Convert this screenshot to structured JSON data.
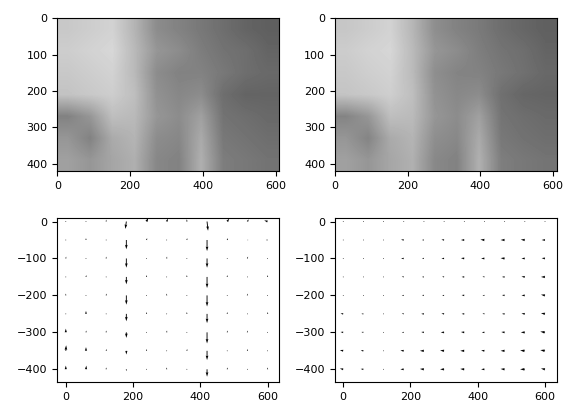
{
  "chart_data": [
    {
      "type": "image",
      "cells": [
        [
          200,
          205,
          210,
          180,
          140,
          130,
          120,
          110,
          100,
          95
        ],
        [
          205,
          210,
          215,
          185,
          150,
          140,
          125,
          115,
          110,
          100
        ],
        [
          200,
          205,
          210,
          185,
          140,
          130,
          130,
          120,
          110,
          105
        ],
        [
          195,
          200,
          205,
          190,
          145,
          135,
          140,
          110,
          100,
          100
        ],
        [
          130,
          150,
          190,
          185,
          150,
          140,
          160,
          115,
          110,
          105
        ],
        [
          150,
          130,
          170,
          180,
          140,
          135,
          170,
          120,
          115,
          110
        ],
        [
          160,
          150,
          165,
          175,
          135,
          130,
          175,
          125,
          120,
          115
        ]
      ],
      "color_range": [
        0,
        255
      ],
      "extent": [
        0,
        610,
        420,
        0
      ],
      "xlim": [
        0,
        610
      ],
      "ylim": [
        420,
        0
      ],
      "xticks": [
        0,
        200,
        400,
        600
      ],
      "yticks": [
        0,
        100,
        200,
        300,
        400
      ]
    },
    {
      "type": "image",
      "cells": [
        [
          198,
          204,
          210,
          182,
          142,
          130,
          122,
          110,
          102,
          96
        ],
        [
          204,
          210,
          214,
          186,
          150,
          140,
          126,
          116,
          110,
          100
        ],
        [
          200,
          206,
          210,
          186,
          142,
          132,
          130,
          120,
          112,
          104
        ],
        [
          196,
          200,
          206,
          190,
          146,
          136,
          140,
          112,
          102,
          100
        ],
        [
          132,
          150,
          190,
          186,
          150,
          140,
          160,
          116,
          110,
          106
        ],
        [
          150,
          132,
          170,
          180,
          142,
          136,
          170,
          120,
          114,
          110
        ],
        [
          160,
          150,
          166,
          176,
          136,
          130,
          176,
          126,
          120,
          116
        ]
      ],
      "color_range": [
        0,
        255
      ],
      "extent": [
        0,
        610,
        420,
        0
      ],
      "xlim": [
        0,
        610
      ],
      "ylim": [
        420,
        0
      ],
      "xticks": [
        0,
        200,
        400,
        600
      ],
      "yticks": [
        0,
        100,
        200,
        300,
        400
      ]
    },
    {
      "type": "quiver",
      "x": [
        0,
        60,
        120,
        180,
        240,
        300,
        360,
        420,
        480,
        540,
        600
      ],
      "y": [
        0,
        -50,
        -100,
        -150,
        -200,
        -250,
        -300,
        -350,
        -400
      ],
      "u": [
        [
          0,
          2,
          0,
          -3,
          5,
          4,
          0,
          3,
          6,
          4,
          -10
        ],
        [
          0,
          0,
          1,
          0,
          2,
          0,
          1,
          0,
          2,
          3,
          -5
        ],
        [
          1,
          0,
          0,
          0,
          0,
          1,
          0,
          0,
          1,
          2,
          0
        ],
        [
          0,
          1,
          0,
          0,
          1,
          0,
          0,
          0,
          0,
          1,
          0
        ],
        [
          0,
          0,
          1,
          0,
          0,
          0,
          1,
          0,
          1,
          0,
          0
        ],
        [
          1,
          0,
          0,
          0,
          1,
          0,
          0,
          0,
          0,
          0,
          1
        ],
        [
          0,
          1,
          0,
          0,
          0,
          1,
          0,
          0,
          1,
          0,
          0
        ],
        [
          1,
          0,
          1,
          0,
          0,
          0,
          1,
          0,
          0,
          1,
          0
        ],
        [
          0,
          1,
          0,
          0,
          1,
          0,
          0,
          0,
          1,
          0,
          0
        ]
      ],
      "v": [
        [
          0,
          0,
          5,
          -20,
          10,
          8,
          6,
          -25,
          8,
          6,
          3
        ],
        [
          0,
          5,
          0,
          -25,
          5,
          0,
          5,
          -30,
          5,
          0,
          0
        ],
        [
          5,
          0,
          5,
          -25,
          0,
          5,
          0,
          -25,
          0,
          5,
          0
        ],
        [
          0,
          5,
          0,
          -20,
          5,
          0,
          5,
          -30,
          5,
          0,
          5
        ],
        [
          5,
          0,
          5,
          -25,
          0,
          5,
          0,
          -30,
          0,
          5,
          0
        ],
        [
          0,
          8,
          0,
          -20,
          5,
          0,
          5,
          -25,
          5,
          0,
          5
        ],
        [
          10,
          5,
          5,
          -15,
          0,
          5,
          0,
          -30,
          5,
          5,
          0
        ],
        [
          15,
          10,
          5,
          -10,
          5,
          0,
          5,
          -25,
          0,
          5,
          0
        ],
        [
          10,
          10,
          5,
          -5,
          0,
          5,
          0,
          -20,
          5,
          0,
          5
        ]
      ],
      "xlim": [
        -25,
        635
      ],
      "ylim": [
        -435,
        10
      ],
      "xticks": [
        0,
        200,
        400,
        600
      ],
      "yticks": [
        0,
        {
          "value": -100,
          "label": "−100"
        },
        {
          "value": -200,
          "label": "−200"
        },
        {
          "value": -300,
          "label": "−300"
        },
        {
          "value": -400,
          "label": "−400"
        }
      ]
    },
    {
      "type": "quiver",
      "x": [
        0,
        60,
        120,
        180,
        240,
        300,
        360,
        420,
        480,
        540,
        600
      ],
      "y": [
        0,
        -50,
        -100,
        -150,
        -200,
        -250,
        -300,
        -350,
        -400
      ],
      "u": [
        [
          0,
          0,
          0,
          0,
          0,
          0,
          0,
          0,
          0,
          0,
          0
        ],
        [
          0,
          0,
          0,
          -8,
          -6,
          -8,
          -10,
          -12,
          -12,
          -12,
          -10
        ],
        [
          0,
          0,
          0,
          -8,
          -6,
          -8,
          -10,
          -10,
          -12,
          -10,
          -10
        ],
        [
          0,
          0,
          0,
          -6,
          -6,
          -6,
          -8,
          -6,
          -8,
          -10,
          -12
        ],
        [
          0,
          0,
          0,
          -6,
          -6,
          -6,
          -8,
          -6,
          -8,
          -10,
          -12
        ],
        [
          -8,
          -6,
          0,
          -6,
          -8,
          -8,
          -8,
          -6,
          -8,
          -10,
          -12
        ],
        [
          -8,
          -6,
          0,
          -6,
          -8,
          -10,
          -10,
          -8,
          -10,
          -12,
          -14
        ],
        [
          -10,
          -8,
          0,
          -10,
          -12,
          -12,
          -12,
          -10,
          -12,
          -14,
          -14
        ],
        [
          -10,
          -8,
          0,
          -10,
          -12,
          -12,
          -12,
          -10,
          -12,
          -14,
          -12
        ]
      ],
      "v": [
        [
          0,
          0,
          0,
          0,
          0,
          0,
          0,
          0,
          0,
          0,
          0
        ],
        [
          0,
          0,
          0,
          1,
          0,
          1,
          0,
          1,
          0,
          1,
          0
        ],
        [
          0,
          0,
          0,
          0,
          1,
          0,
          1,
          0,
          1,
          0,
          1
        ],
        [
          0,
          0,
          0,
          1,
          0,
          1,
          0,
          1,
          0,
          1,
          0
        ],
        [
          0,
          0,
          0,
          0,
          1,
          0,
          1,
          0,
          1,
          0,
          2
        ],
        [
          1,
          0,
          0,
          1,
          0,
          1,
          0,
          1,
          0,
          1,
          2
        ],
        [
          1,
          1,
          0,
          0,
          1,
          0,
          1,
          0,
          1,
          0,
          2
        ],
        [
          2,
          1,
          0,
          1,
          0,
          1,
          0,
          1,
          0,
          1,
          2
        ],
        [
          2,
          1,
          0,
          0,
          1,
          0,
          1,
          0,
          1,
          0,
          2
        ]
      ],
      "xlim": [
        -25,
        635
      ],
      "ylim": [
        -435,
        10
      ],
      "xticks": [
        0,
        200,
        400,
        600
      ],
      "yticks": [
        0,
        {
          "value": -100,
          "label": "−100"
        },
        {
          "value": -200,
          "label": "−200"
        },
        {
          "value": -300,
          "label": "−300"
        },
        {
          "value": -400,
          "label": "−400"
        }
      ]
    }
  ]
}
